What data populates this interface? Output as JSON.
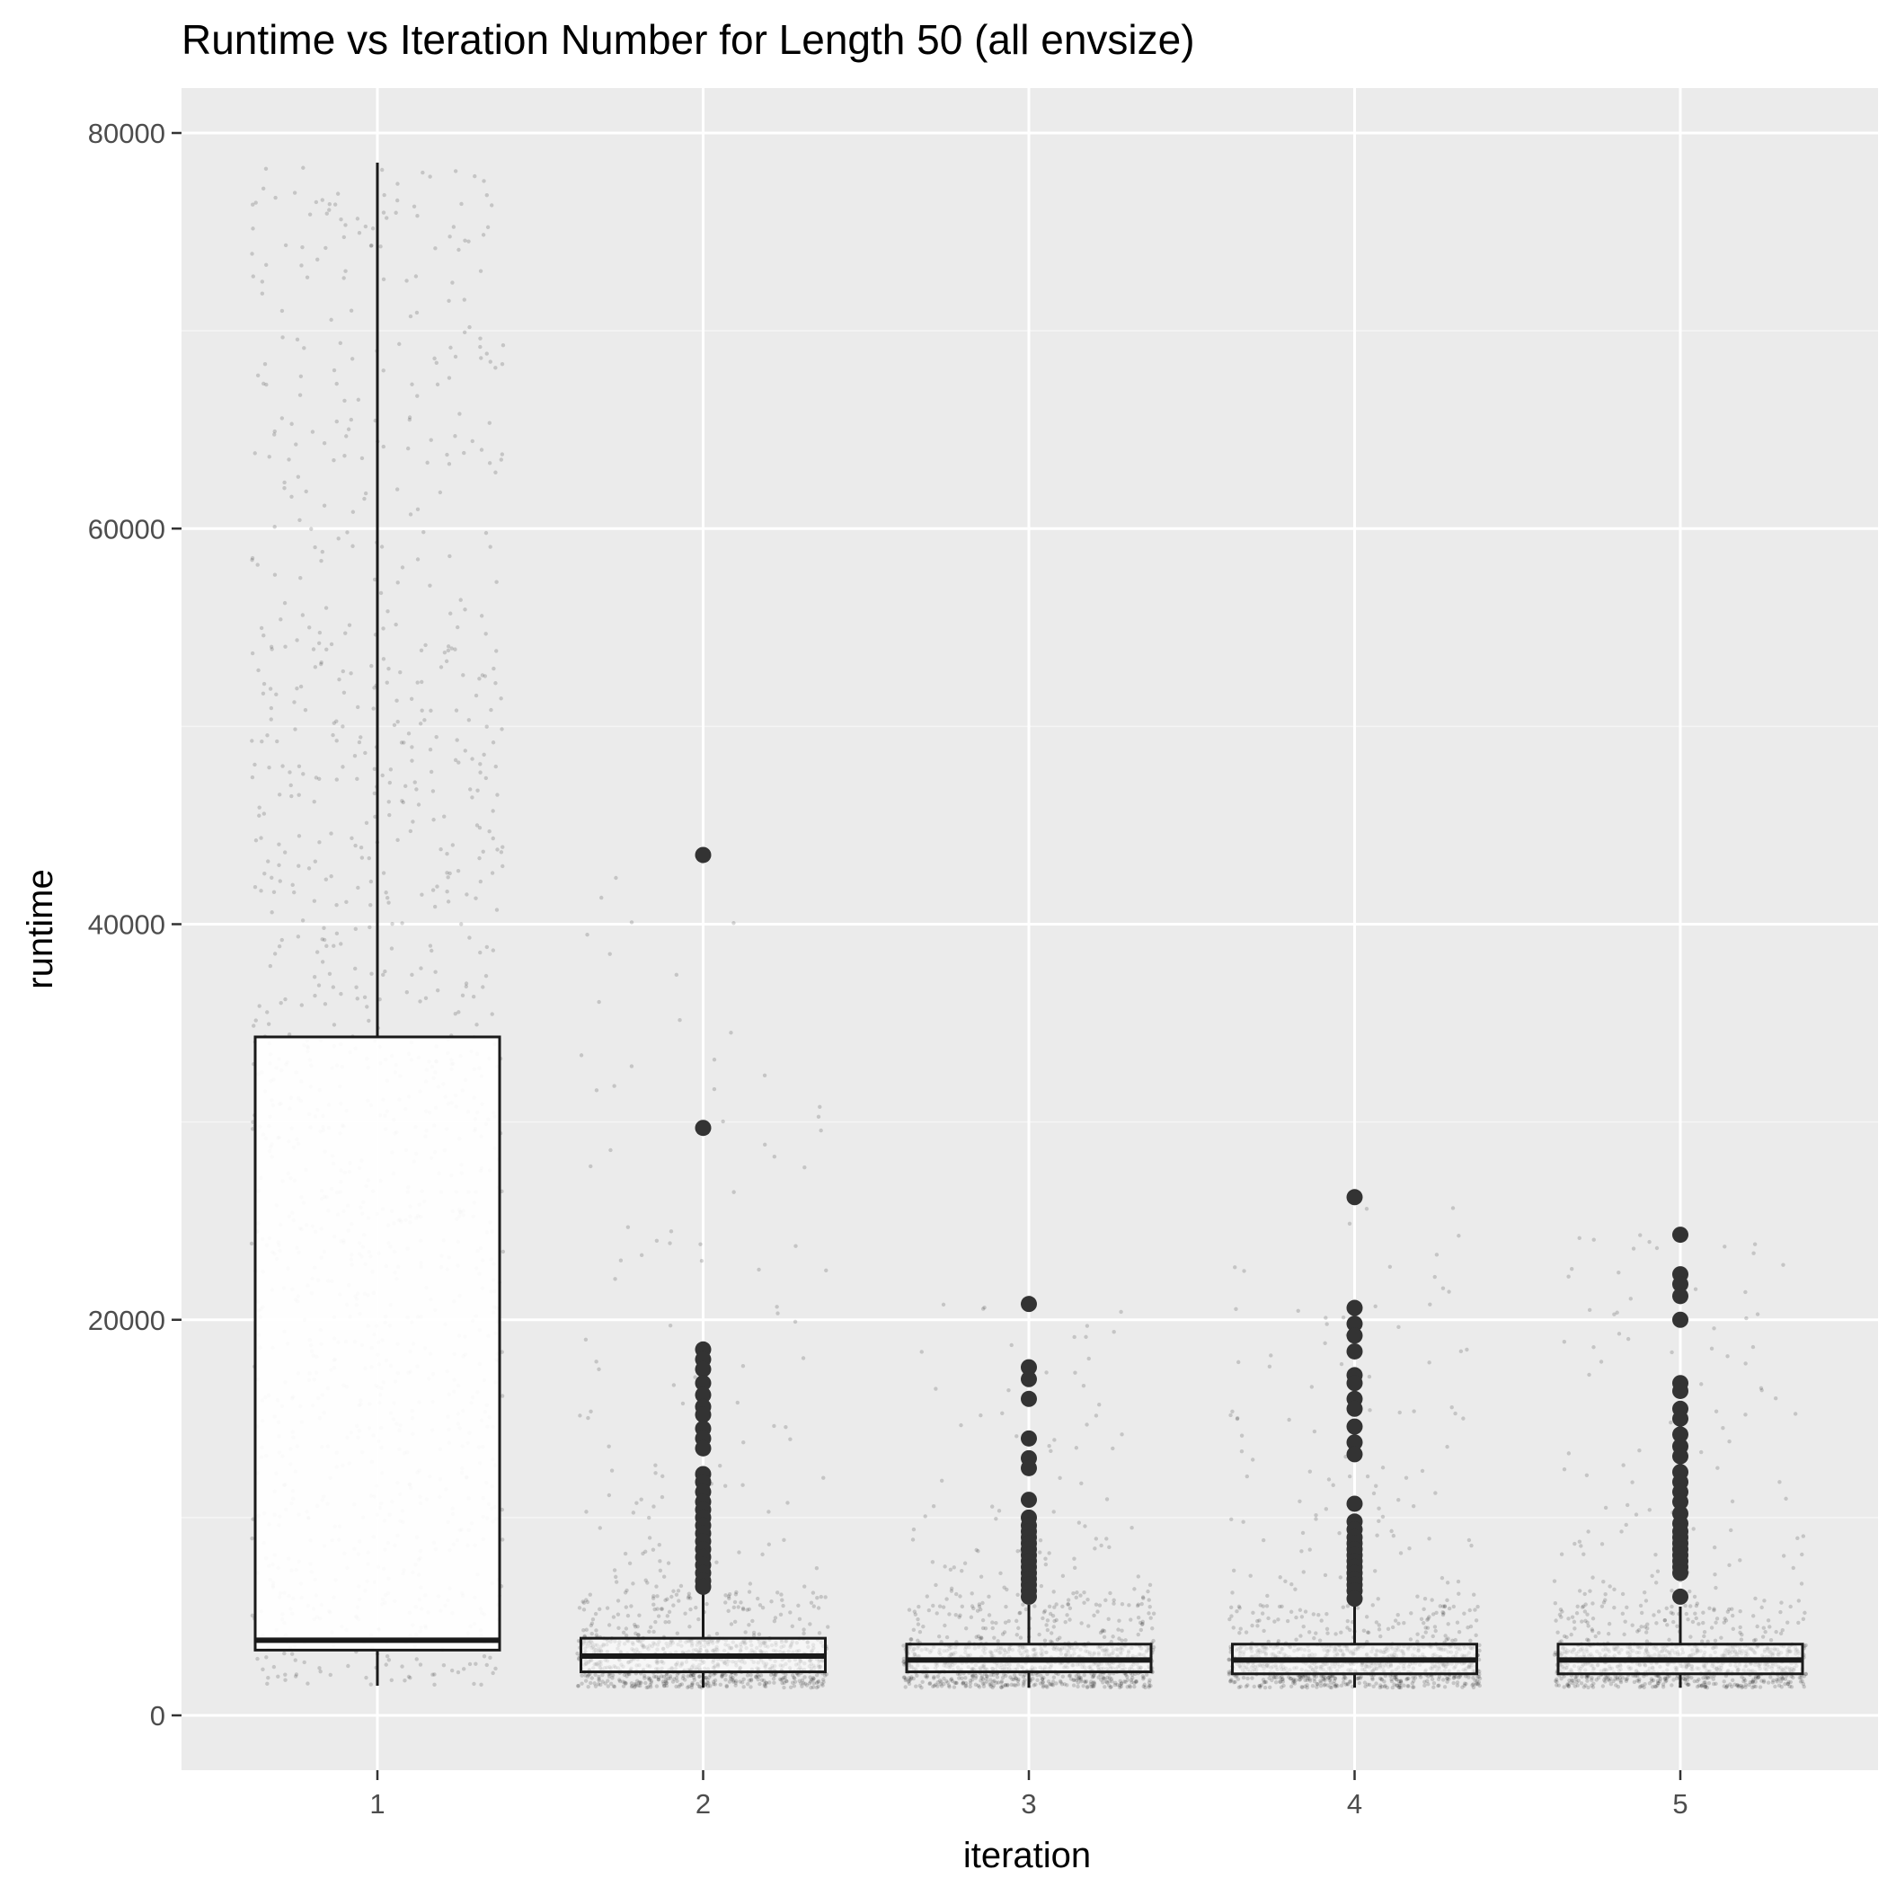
{
  "chart_data": {
    "type": "box",
    "title": "Runtime vs Iteration Number for Length 50 (all envsize)",
    "xlabel": "iteration",
    "ylabel": "runtime",
    "categories": [
      "1",
      "2",
      "3",
      "4",
      "5"
    ],
    "y_ticks": [
      0,
      20000,
      40000,
      60000,
      80000
    ],
    "y_tick_labels": [
      "0",
      "20000",
      "40000",
      "60000",
      "80000"
    ],
    "ylim": [
      -2500,
      82500
    ],
    "grid": true,
    "legend": "none",
    "colors": {
      "panel_background": "#ebebeb",
      "grid_major": "#ffffff",
      "grid_minor": "#f5f5f5",
      "box_fill": "#ffffff",
      "box_line": "#1a1a1a",
      "outlier": "#333333",
      "jitter_point": "#000000"
    },
    "boxes": [
      {
        "category": "1",
        "whisker_low": 1500,
        "q1": 3300,
        "median": 3800,
        "q3": 34300,
        "whisker_high": 78500,
        "outliers": []
      },
      {
        "category": "2",
        "whisker_low": 1400,
        "q1": 2200,
        "median": 3000,
        "q3": 3900,
        "whisker_high": 6200,
        "outliers": [
          43500,
          29700,
          18500,
          18000,
          17500,
          16800,
          16200,
          15600,
          15200,
          14500,
          14000,
          13500,
          12200,
          11800,
          11300,
          10800,
          10400,
          10000,
          9600,
          9200,
          8800,
          8400,
          8000,
          7600,
          7200,
          6800,
          6500
        ]
      },
      {
        "category": "3",
        "whisker_low": 1400,
        "q1": 2200,
        "median": 2800,
        "q3": 3600,
        "whisker_high": 5600,
        "outliers": [
          20800,
          17600,
          17000,
          16000,
          14000,
          13000,
          12500,
          10900,
          10000,
          9600,
          9300,
          9000,
          8700,
          8400,
          8100,
          7800,
          7500,
          7200,
          6900,
          6600,
          6300,
          6000
        ]
      },
      {
        "category": "4",
        "whisker_low": 1400,
        "q1": 2100,
        "median": 2800,
        "q3": 3600,
        "whisker_high": 5500,
        "outliers": [
          26200,
          20600,
          19800,
          19200,
          18400,
          17200,
          16800,
          16000,
          15500,
          14600,
          13800,
          13200,
          10700,
          9800,
          9400,
          9000,
          8700,
          8400,
          8100,
          7800,
          7500,
          7200,
          6900,
          6600,
          6300,
          5900
        ]
      },
      {
        "category": "5",
        "whisker_low": 1400,
        "q1": 2100,
        "median": 2800,
        "q3": 3600,
        "whisker_high": 5500,
        "outliers": [
          24300,
          22300,
          21800,
          21200,
          20000,
          16800,
          16400,
          15500,
          15000,
          14200,
          13600,
          13100,
          12300,
          11800,
          11300,
          10800,
          10200,
          9700,
          9300,
          9000,
          8700,
          8400,
          8100,
          7800,
          7500,
          7200,
          6000
        ]
      }
    ],
    "jitter_points": "semi-transparent jittered raw observations overlaid on each box"
  }
}
